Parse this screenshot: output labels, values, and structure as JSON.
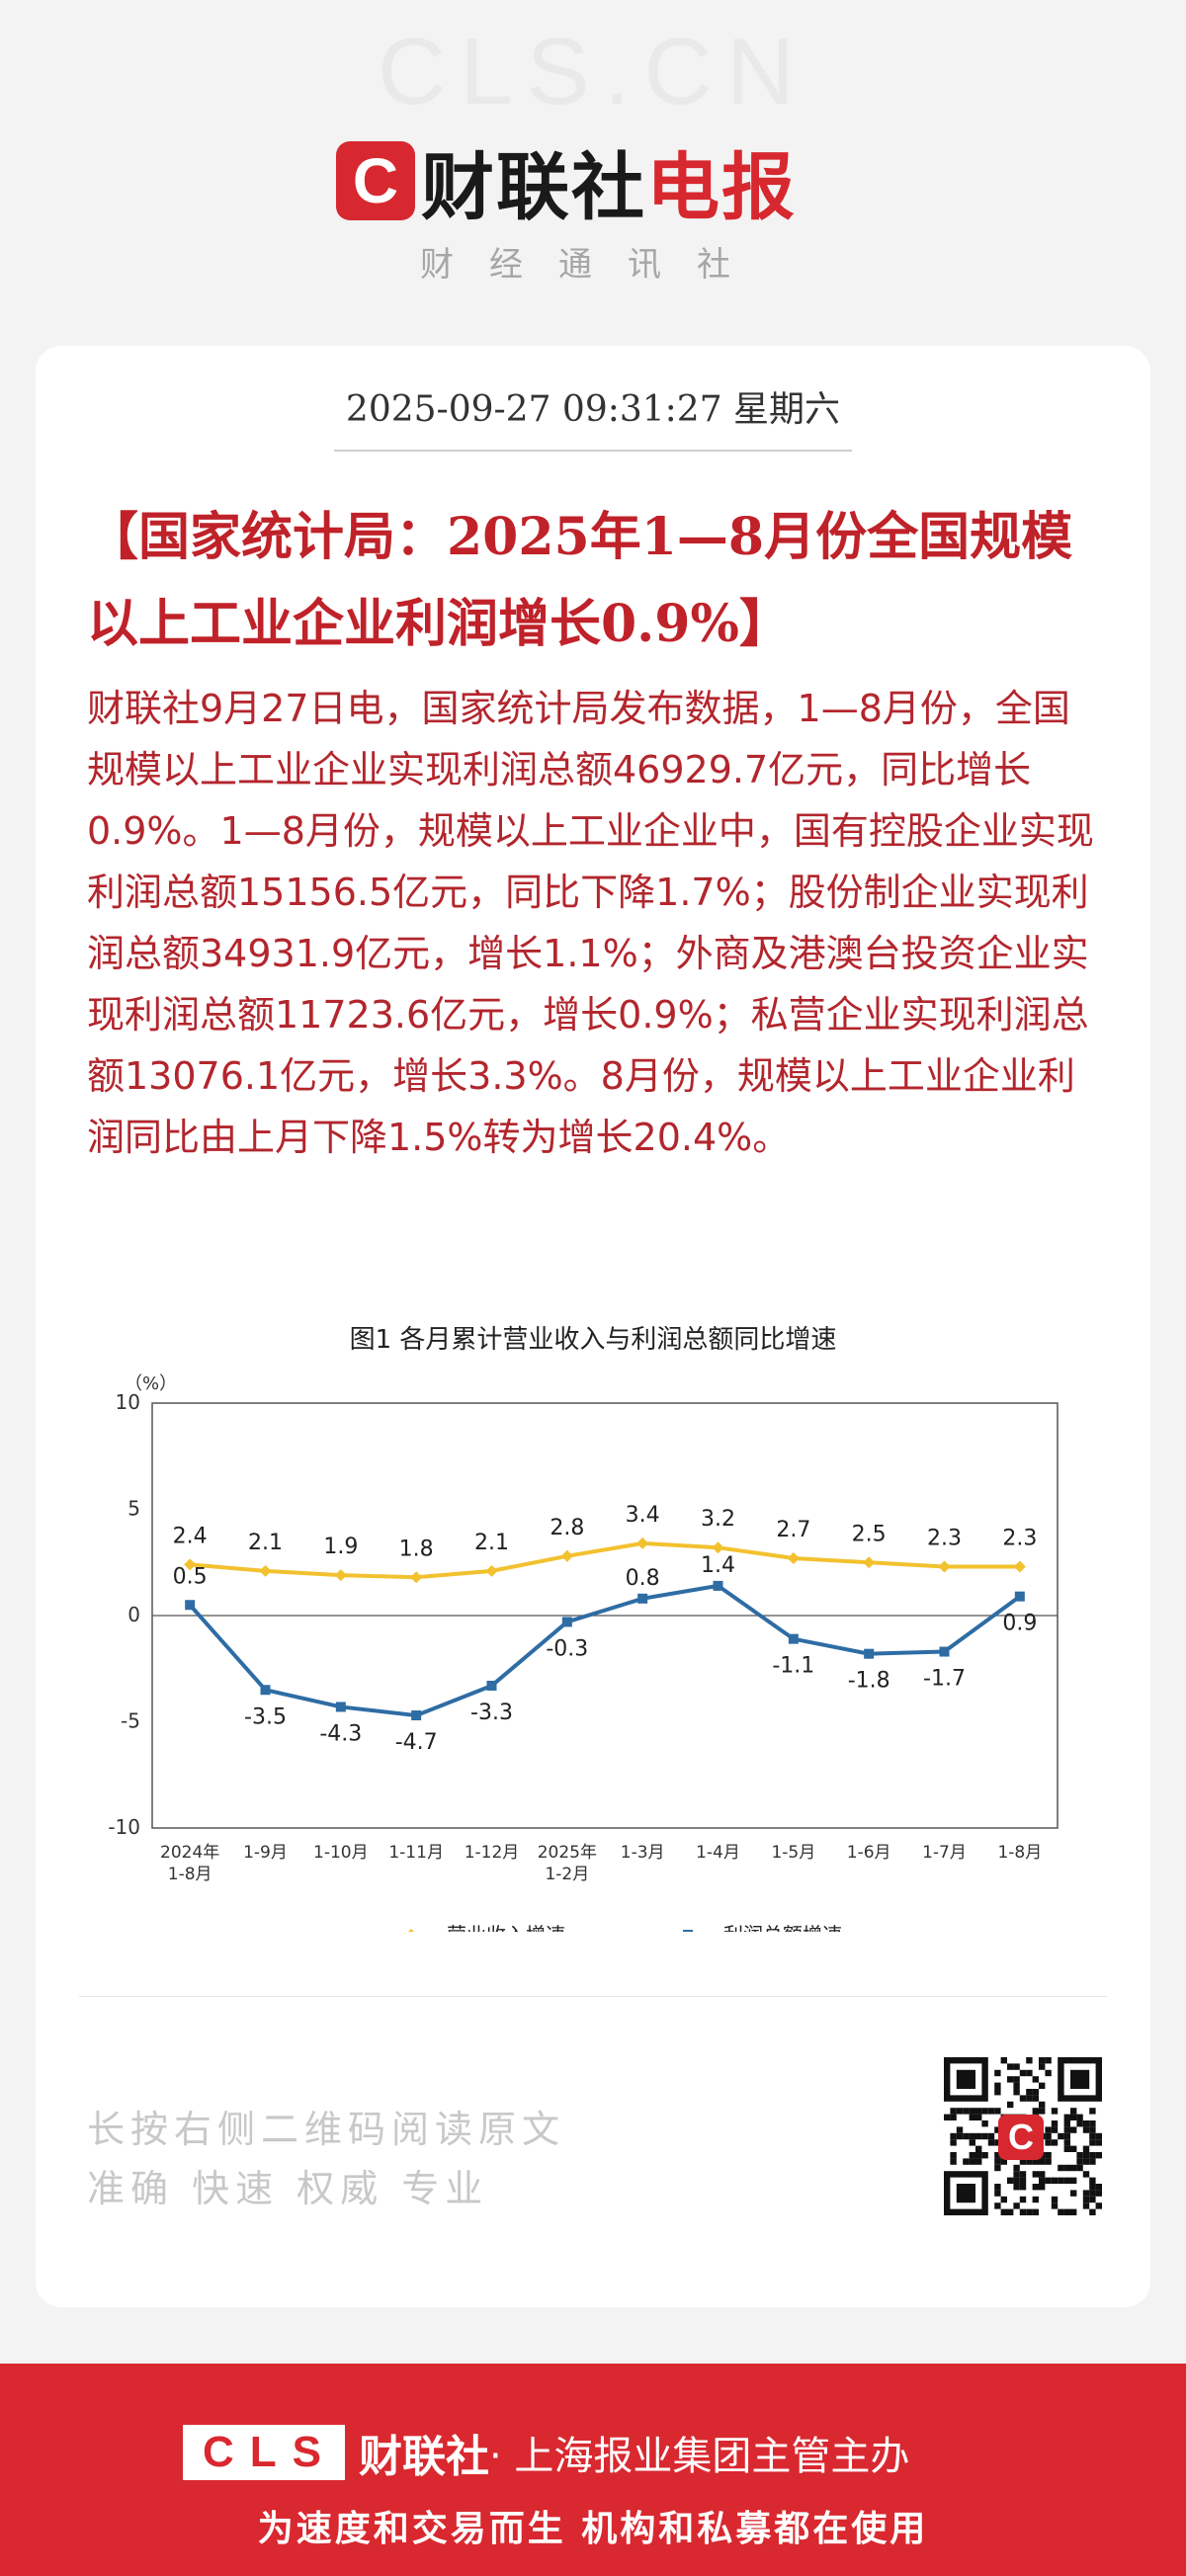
{
  "watermark": "CLS.CN",
  "brand": {
    "logo_letter": "C",
    "name": "财联社",
    "name_accent": "电报",
    "tagline": "财经通讯社"
  },
  "article": {
    "datetime": "2025-09-27 09:31:27 星期六",
    "headline": "【国家统计局：2025年1—8月份全国规模以上工业企业利润增长0.9%】",
    "body": "财联社9月27日电，国家统计局发布数据，1—8月份，全国规模以上工业企业实现利润总额46929.7亿元，同比增长0.9%。1—8月份，规模以上工业企业中，国有控股企业实现利润总额15156.5亿元，同比下降1.7%；股份制企业实现利润总额34931.9亿元，增长1.1%；外商及港澳台投资企业实现利润总额11723.6亿元，增长0.9%；私营企业实现利润总额13076.1亿元，增长3.3%。8月份，规模以上工业企业利润同比由上月下降1.5%转为增长20.4%。"
  },
  "chart_data": {
    "type": "line",
    "title": "图1 各月累计营业收入与利润总额同比增速",
    "ylabel": "（%）",
    "ylim": [
      -10,
      10
    ],
    "yticks": [
      10,
      5,
      0,
      -5,
      -10
    ],
    "categories": [
      "2024年\n1-8月",
      "1-9月",
      "1-10月",
      "1-11月",
      "1-12月",
      "2025年\n1-2月",
      "1-3月",
      "1-4月",
      "1-5月",
      "1-6月",
      "1-7月",
      "1-8月"
    ],
    "series": [
      {
        "name": "营业收入增速",
        "color": "#f2c12e",
        "values": [
          2.4,
          2.1,
          1.9,
          1.8,
          2.1,
          2.8,
          3.4,
          3.2,
          2.7,
          2.5,
          2.3,
          2.3
        ]
      },
      {
        "name": "利润总额增速",
        "color": "#2e6ca4",
        "values": [
          0.5,
          -3.5,
          -4.3,
          -4.7,
          -3.3,
          -0.3,
          0.8,
          1.4,
          -1.1,
          -1.8,
          -1.7,
          0.9
        ]
      }
    ],
    "legend": "bottom",
    "grid": false
  },
  "footer": {
    "cta_line1": "长按右侧二维码阅读原文",
    "cta_line2": "准确 快速 权威 专业",
    "qr_logo": "C"
  },
  "bottom_banner": {
    "cls_logo": "CLS",
    "name": "财联社",
    "sub": "· 上海报业集团主管主办",
    "slogan": "为速度和交易而生 机构和私募都在使用"
  }
}
